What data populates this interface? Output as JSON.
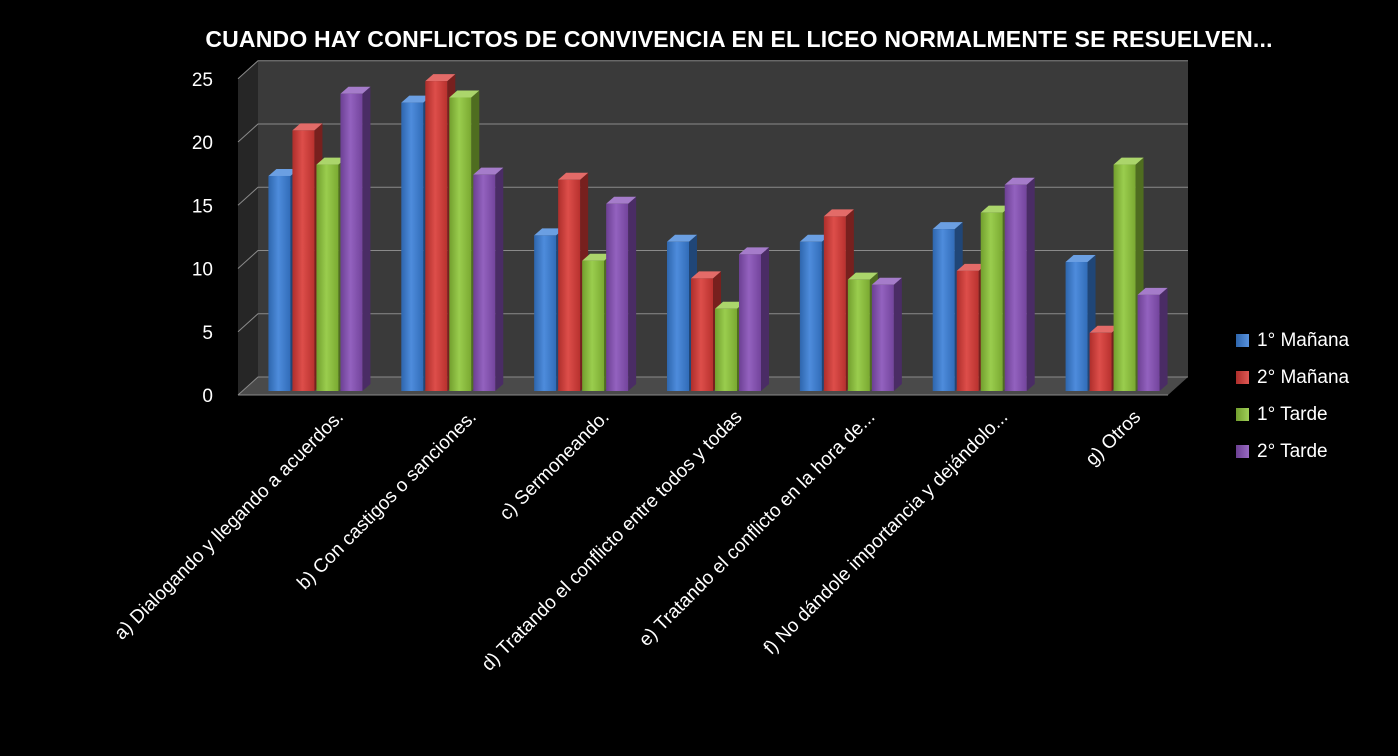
{
  "chart_data": {
    "type": "bar",
    "title": "CUANDO HAY CONFLICTOS DE CONVIVENCIA EN EL LICEO NORMALMENTE SE RESUELVEN...",
    "categories": [
      "a) Dialogando y llegando a acuerdos.",
      "b) Con castigos o sanciones.",
      "c) Sermoneando.",
      "d) Tratando el conflicto entre todos y todas",
      "e) Tratando el conflicto en la hora de...",
      "f) No dándole importancia y dejándolo...",
      "g) Otros"
    ],
    "series": [
      {
        "name": "1° Mañana",
        "color": "#3a7fd8",
        "values": [
          17,
          22.8,
          12.3,
          11.8,
          11.8,
          12.8,
          10.2
        ]
      },
      {
        "name": "2° Mañana",
        "color": "#d93a36",
        "values": [
          20.6,
          24.5,
          16.7,
          8.9,
          13.8,
          9.5,
          4.6
        ]
      },
      {
        "name": "1° Tarde",
        "color": "#8fc73a",
        "values": [
          17.9,
          23.2,
          10.3,
          6.5,
          8.8,
          14.1,
          17.9
        ]
      },
      {
        "name": "2° Tarde",
        "color": "#8750b8",
        "values": [
          23.5,
          17.1,
          14.8,
          10.8,
          8.4,
          16.3,
          7.6
        ]
      }
    ],
    "yticks": [
      0,
      5,
      10,
      15,
      20,
      25
    ],
    "ylim": [
      0,
      25
    ],
    "grid": true,
    "legend": "right",
    "three_d": true
  }
}
